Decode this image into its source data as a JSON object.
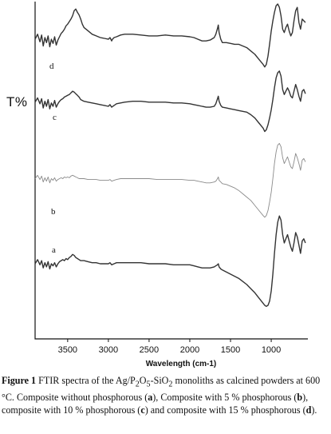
{
  "chart_data": {
    "type": "line",
    "xlabel": "Wavelength (cm-1)",
    "ylabel": "T%",
    "x_ticks": [
      3500,
      3000,
      2500,
      2000,
      1500,
      1000
    ],
    "xlim": [
      3900,
      550
    ],
    "x_reversed": true,
    "grid": false,
    "legend": "none",
    "series": [
      {
        "name": "d",
        "color": "#333333",
        "x": [
          3900,
          3870,
          3840,
          3820,
          3800,
          3780,
          3760,
          3740,
          3720,
          3700,
          3680,
          3660,
          3640,
          3620,
          3600,
          3580,
          3560,
          3540,
          3520,
          3500,
          3480,
          3460,
          3440,
          3420,
          3400,
          3380,
          3360,
          3340,
          3320,
          3300,
          3250,
          3200,
          3150,
          3100,
          3050,
          3000,
          2980,
          2960,
          2950,
          2930,
          2900,
          2850,
          2800,
          2700,
          2600,
          2500,
          2400,
          2300,
          2200,
          2100,
          2000,
          1950,
          1900,
          1850,
          1800,
          1750,
          1700,
          1680,
          1660,
          1650,
          1640,
          1620,
          1600,
          1550,
          1500,
          1450,
          1400,
          1350,
          1300,
          1250,
          1200,
          1150,
          1100,
          1080,
          1060,
          1040,
          1020,
          1000,
          980,
          960,
          940,
          920,
          900,
          880,
          860,
          840,
          820,
          800,
          780,
          760,
          740,
          720,
          700,
          680,
          660,
          640,
          620,
          600,
          580
        ],
        "values": [
          58,
          64,
          55,
          63,
          50,
          60,
          54,
          62,
          49,
          58,
          53,
          61,
          51,
          57,
          61,
          65,
          67,
          70,
          74,
          76,
          79,
          82,
          86,
          92,
          94,
          90,
          87,
          82,
          76,
          72,
          68,
          64,
          62,
          60,
          59,
          58,
          60,
          56,
          58,
          60,
          61,
          63,
          64,
          64,
          63,
          62,
          62,
          63,
          62,
          62,
          61,
          60,
          58,
          56,
          56,
          57,
          60,
          64,
          71,
          75,
          66,
          58,
          54,
          54,
          53,
          52,
          52,
          50,
          48,
          44,
          40,
          34,
          28,
          25,
          28,
          38,
          52,
          68,
          80,
          90,
          98,
          100,
          96,
          86,
          70,
          66,
          72,
          76,
          68,
          62,
          66,
          80,
          92,
          96,
          78,
          70,
          82,
          80,
          78
        ]
      },
      {
        "name": "c",
        "color": "#333333",
        "x": [
          3900,
          3870,
          3840,
          3820,
          3800,
          3780,
          3760,
          3740,
          3720,
          3700,
          3680,
          3660,
          3640,
          3620,
          3600,
          3580,
          3560,
          3540,
          3520,
          3500,
          3480,
          3460,
          3440,
          3420,
          3400,
          3380,
          3360,
          3340,
          3300,
          3250,
          3200,
          3150,
          3100,
          3050,
          3000,
          2980,
          2960,
          2930,
          2900,
          2850,
          2800,
          2700,
          2600,
          2500,
          2400,
          2300,
          2200,
          2100,
          2000,
          1950,
          1900,
          1850,
          1800,
          1750,
          1700,
          1680,
          1660,
          1650,
          1640,
          1620,
          1600,
          1550,
          1500,
          1450,
          1400,
          1350,
          1300,
          1250,
          1200,
          1150,
          1100,
          1080,
          1060,
          1040,
          1020,
          1000,
          980,
          960,
          940,
          920,
          900,
          880,
          860,
          840,
          820,
          800,
          780,
          760,
          740,
          720,
          700,
          680,
          660,
          640,
          620,
          600,
          580
        ],
        "values": [
          45,
          50,
          43,
          49,
          38,
          46,
          40,
          48,
          37,
          44,
          40,
          47,
          39,
          43,
          46,
          48,
          49,
          51,
          52,
          53,
          54,
          56,
          58,
          57,
          55,
          53,
          51,
          48,
          46,
          45,
          44,
          43,
          42,
          41,
          40,
          42,
          39,
          41,
          43,
          44,
          45,
          46,
          46,
          45,
          45,
          45,
          44,
          44,
          43,
          42,
          41,
          40,
          39,
          39,
          40,
          43,
          49,
          52,
          46,
          41,
          39,
          38,
          37,
          36,
          35,
          34,
          33,
          30,
          26,
          20,
          14,
          10,
          12,
          18,
          26,
          36,
          48,
          62,
          74,
          80,
          82,
          76,
          60,
          54,
          58,
          62,
          58,
          52,
          50,
          58,
          66,
          60,
          52,
          46,
          58,
          60,
          55
        ]
      },
      {
        "name": "b",
        "color": "#8a8a8a",
        "x": [
          3900,
          3870,
          3840,
          3820,
          3800,
          3780,
          3760,
          3740,
          3720,
          3700,
          3680,
          3660,
          3640,
          3620,
          3600,
          3580,
          3560,
          3540,
          3520,
          3500,
          3480,
          3460,
          3440,
          3420,
          3400,
          3380,
          3360,
          3340,
          3300,
          3250,
          3200,
          3150,
          3100,
          3050,
          3000,
          2980,
          2960,
          2930,
          2900,
          2850,
          2800,
          2700,
          2600,
          2500,
          2400,
          2300,
          2200,
          2100,
          2000,
          1950,
          1900,
          1850,
          1800,
          1750,
          1700,
          1680,
          1660,
          1650,
          1640,
          1620,
          1600,
          1550,
          1500,
          1450,
          1400,
          1350,
          1300,
          1250,
          1200,
          1150,
          1100,
          1080,
          1060,
          1040,
          1020,
          1000,
          980,
          960,
          940,
          920,
          900,
          880,
          860,
          840,
          820,
          800,
          780,
          760,
          740,
          720,
          700,
          680,
          660,
          640,
          620,
          600,
          580
        ],
        "values": [
          30,
          34,
          29,
          33,
          26,
          31,
          27,
          32,
          25,
          30,
          28,
          31,
          27,
          29,
          30,
          31,
          30,
          32,
          31,
          32,
          31,
          33,
          34,
          33,
          32,
          31,
          30,
          30,
          30,
          29,
          29,
          29,
          28,
          28,
          28,
          29,
          27,
          28,
          29,
          30,
          30,
          30,
          30,
          30,
          29,
          29,
          29,
          29,
          28,
          28,
          27,
          26,
          25,
          25,
          26,
          27,
          30,
          32,
          28,
          26,
          24,
          23,
          21,
          19,
          16,
          12,
          8,
          4,
          -2,
          -8,
          -14,
          -16,
          -14,
          -8,
          2,
          14,
          30,
          48,
          62,
          70,
          72,
          68,
          55,
          48,
          52,
          56,
          50,
          44,
          42,
          50,
          60,
          55,
          48,
          40,
          52,
          54,
          50
        ]
      },
      {
        "name": "a",
        "color": "#333333",
        "x": [
          3900,
          3870,
          3840,
          3820,
          3800,
          3780,
          3760,
          3740,
          3720,
          3700,
          3680,
          3660,
          3640,
          3620,
          3600,
          3580,
          3560,
          3540,
          3520,
          3500,
          3480,
          3460,
          3440,
          3420,
          3400,
          3380,
          3360,
          3340,
          3300,
          3250,
          3200,
          3150,
          3100,
          3050,
          3000,
          2980,
          2960,
          2930,
          2900,
          2850,
          2800,
          2700,
          2600,
          2500,
          2400,
          2300,
          2200,
          2100,
          2000,
          1950,
          1900,
          1850,
          1800,
          1750,
          1700,
          1680,
          1660,
          1650,
          1640,
          1620,
          1600,
          1550,
          1500,
          1450,
          1400,
          1350,
          1300,
          1250,
          1200,
          1150,
          1100,
          1080,
          1060,
          1040,
          1020,
          1000,
          980,
          960,
          940,
          920,
          900,
          880,
          860,
          840,
          820,
          800,
          780,
          760,
          740,
          720,
          700,
          680,
          660,
          640,
          620,
          600,
          580
        ],
        "values": [
          0,
          4,
          -1,
          3,
          -4,
          1,
          -3,
          2,
          -5,
          0,
          -2,
          1,
          -3,
          0,
          2,
          3,
          4,
          3,
          5,
          4,
          6,
          7,
          9,
          8,
          6,
          5,
          4,
          3,
          3,
          2,
          1,
          1,
          0,
          0,
          0,
          1,
          -1,
          0,
          1,
          1,
          1,
          1,
          1,
          0,
          0,
          0,
          -1,
          -1,
          -1,
          -2,
          -3,
          -4,
          -4,
          -4,
          -3,
          -2,
          -1,
          0,
          -3,
          -5,
          -6,
          -8,
          -10,
          -12,
          -14,
          -17,
          -20,
          -24,
          -28,
          -33,
          -38,
          -40,
          -41,
          -40,
          -36,
          -26,
          -10,
          10,
          28,
          40,
          46,
          42,
          28,
          20,
          24,
          28,
          22,
          16,
          12,
          20,
          30,
          26,
          18,
          10,
          22,
          24,
          20
        ]
      }
    ],
    "curve_labels": [
      {
        "text": "d",
        "series": "d"
      },
      {
        "text": "c",
        "series": "c"
      },
      {
        "text": "b",
        "series": "b"
      },
      {
        "text": "a",
        "series": "a"
      }
    ]
  },
  "caption": {
    "figure_label": "Figure 1",
    "text_1": "  FTIR spectra of the Ag/P",
    "sub_1": "2",
    "text_2": "O",
    "sub_2": "5",
    "text_3": "-SiO",
    "sub_3": "2",
    "text_4": " monoliths as calcined powders at 600 °C. Composite without phosphorous (",
    "bold_a": "a",
    "text_5": "), Composite with 5 % phosphorous (",
    "bold_b": "b",
    "text_6": "), composite with 10 % phosphorous (",
    "bold_c": "c",
    "text_7": ") and composite with 15 % phosphorous (",
    "bold_d": "d",
    "text_8": ")."
  }
}
